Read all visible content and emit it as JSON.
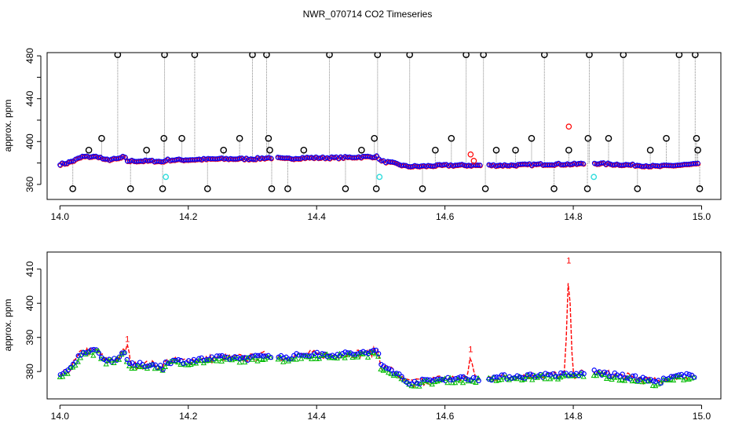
{
  "title": "NWR_070714  CO2 Timeseries",
  "chart_data": [
    {
      "type": "scatter",
      "ylabel": "approx. ppm",
      "xlim": [
        13.98,
        15.03
      ],
      "ylim": [
        346,
        483
      ],
      "xticks": [
        "14.0",
        "14.2",
        "14.4",
        "14.6",
        "14.8",
        "15.0"
      ],
      "xtick_values": [
        14.0,
        14.2,
        14.4,
        14.6,
        14.8,
        15.0
      ],
      "yticks": [
        "360",
        "400",
        "440",
        "480"
      ],
      "ytick_values": [
        360,
        400,
        440,
        480
      ],
      "baseline": [
        [
          14.0,
          379
        ],
        [
          14.01,
          380
        ],
        [
          14.02,
          382
        ],
        [
          14.035,
          386
        ],
        [
          14.06,
          386
        ],
        [
          14.07,
          383
        ],
        [
          14.09,
          384
        ],
        [
          14.1,
          386
        ],
        [
          14.105,
          382
        ],
        [
          14.12,
          382
        ],
        [
          14.15,
          382
        ],
        [
          14.16,
          381
        ],
        [
          14.165,
          383
        ],
        [
          14.19,
          383
        ],
        [
          14.25,
          384
        ],
        [
          14.3,
          384
        ],
        [
          14.325,
          385
        ],
        [
          14.335,
          385
        ],
        [
          14.35,
          384
        ],
        [
          14.38,
          385
        ],
        [
          14.43,
          385
        ],
        [
          14.48,
          386
        ],
        [
          14.495,
          386
        ],
        [
          14.5,
          382
        ],
        [
          14.52,
          380
        ],
        [
          14.54,
          377
        ],
        [
          14.56,
          377
        ],
        [
          14.6,
          378
        ],
        [
          14.63,
          378
        ],
        [
          14.66,
          378
        ],
        [
          14.7,
          378
        ],
        [
          14.76,
          379
        ],
        [
          14.8,
          379
        ],
        [
          14.83,
          380
        ],
        [
          14.86,
          379
        ],
        [
          14.9,
          378
        ],
        [
          14.93,
          377
        ],
        [
          14.96,
          378
        ],
        [
          14.99,
          379
        ]
      ],
      "gaps": [
        [
          14.33,
          14.338
        ],
        [
          14.655,
          14.666
        ],
        [
          14.818,
          14.83
        ]
      ],
      "outliers": [
        [
          14.02,
          356
        ],
        [
          14.045,
          392
        ],
        [
          14.065,
          403
        ],
        [
          14.09,
          481
        ],
        [
          14.11,
          356
        ],
        [
          14.135,
          392
        ],
        [
          14.16,
          356
        ],
        [
          14.162,
          403
        ],
        [
          14.163,
          481
        ],
        [
          14.21,
          481
        ],
        [
          14.19,
          403
        ],
        [
          14.23,
          356
        ],
        [
          14.255,
          392
        ],
        [
          14.28,
          403
        ],
        [
          14.3,
          481
        ],
        [
          14.322,
          481
        ],
        [
          14.325,
          403
        ],
        [
          14.327,
          392
        ],
        [
          14.33,
          356
        ],
        [
          14.355,
          356
        ],
        [
          14.38,
          392
        ],
        [
          14.42,
          481
        ],
        [
          14.445,
          356
        ],
        [
          14.47,
          392
        ],
        [
          14.49,
          403
        ],
        [
          14.493,
          356
        ],
        [
          14.495,
          481
        ],
        [
          14.545,
          481
        ],
        [
          14.565,
          356
        ],
        [
          14.585,
          392
        ],
        [
          14.61,
          403
        ],
        [
          14.633,
          481
        ],
        [
          14.66,
          481
        ],
        [
          14.663,
          356
        ],
        [
          14.68,
          392
        ],
        [
          14.71,
          392
        ],
        [
          14.735,
          403
        ],
        [
          14.755,
          481
        ],
        [
          14.77,
          356
        ],
        [
          14.793,
          392
        ],
        [
          14.822,
          356
        ],
        [
          14.823,
          403
        ],
        [
          14.825,
          481
        ],
        [
          14.855,
          403
        ],
        [
          14.878,
          481
        ],
        [
          14.9,
          356
        ],
        [
          14.92,
          392
        ],
        [
          14.945,
          403
        ],
        [
          14.965,
          481
        ],
        [
          14.99,
          481
        ],
        [
          14.992,
          403
        ],
        [
          14.994,
          392
        ],
        [
          14.997,
          356
        ]
      ],
      "red_points": [
        [
          14.64,
          388
        ],
        [
          14.645,
          382
        ],
        [
          14.793,
          414
        ]
      ],
      "cyan_points": [
        [
          14.165,
          367
        ],
        [
          14.498,
          367
        ],
        [
          14.832,
          367
        ]
      ],
      "series_colors": {
        "outlier": "#000000",
        "main": "#0000ff",
        "alt": "#ff0000",
        "flag": "#33dddd",
        "drop": "#888888"
      }
    },
    {
      "type": "line",
      "ylabel": "approx. ppm",
      "xlim": [
        13.98,
        15.03
      ],
      "ylim": [
        372,
        415
      ],
      "xticks": [
        "14.0",
        "14.2",
        "14.4",
        "14.6",
        "14.8",
        "15.0"
      ],
      "xtick_values": [
        14.0,
        14.2,
        14.4,
        14.6,
        14.8,
        15.0
      ],
      "yticks": [
        "380",
        "390",
        "400",
        "410"
      ],
      "ytick_values": [
        380,
        390,
        400,
        410
      ],
      "baseline": [
        [
          14.0,
          379
        ],
        [
          14.01,
          379.5
        ],
        [
          14.02,
          382
        ],
        [
          14.035,
          386
        ],
        [
          14.06,
          386
        ],
        [
          14.07,
          383
        ],
        [
          14.09,
          384
        ],
        [
          14.1,
          386
        ],
        [
          14.105,
          382
        ],
        [
          14.12,
          382
        ],
        [
          14.15,
          382
        ],
        [
          14.16,
          381
        ],
        [
          14.165,
          383
        ],
        [
          14.19,
          383
        ],
        [
          14.25,
          384
        ],
        [
          14.3,
          384
        ],
        [
          14.325,
          385
        ],
        [
          14.335,
          384.5
        ],
        [
          14.35,
          384
        ],
        [
          14.38,
          385
        ],
        [
          14.43,
          385
        ],
        [
          14.48,
          385.5
        ],
        [
          14.495,
          386
        ],
        [
          14.5,
          382
        ],
        [
          14.52,
          380
        ],
        [
          14.54,
          377
        ],
        [
          14.56,
          377
        ],
        [
          14.6,
          378
        ],
        [
          14.63,
          378
        ],
        [
          14.66,
          378
        ],
        [
          14.7,
          378.5
        ],
        [
          14.76,
          379
        ],
        [
          14.8,
          379
        ],
        [
          14.83,
          380
        ],
        [
          14.86,
          379
        ],
        [
          14.9,
          378
        ],
        [
          14.93,
          377
        ],
        [
          14.96,
          378.5
        ],
        [
          14.99,
          379
        ]
      ],
      "gaps": [
        [
          14.33,
          14.338
        ],
        [
          14.655,
          14.666
        ],
        [
          14.818,
          14.83
        ]
      ],
      "spikes": [
        {
          "x": 14.64,
          "y": 385,
          "label": "1"
        },
        {
          "x": 14.793,
          "y": 411,
          "label": "1"
        },
        {
          "x": 14.105,
          "y": 388,
          "label": "1"
        }
      ],
      "series_colors": {
        "circle": "#0000ff",
        "triangle": "#00bb00",
        "line": "#ff0000"
      }
    }
  ]
}
